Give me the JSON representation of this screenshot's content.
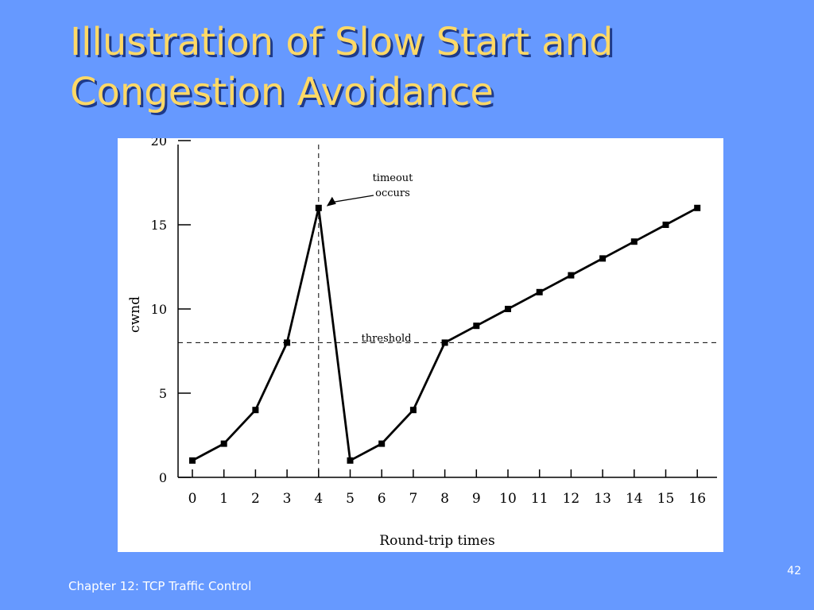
{
  "slide": {
    "title_line1": "Illustration of Slow Start and",
    "title_line2": "Congestion Avoidance",
    "footer": "Chapter 12:  TCP Traffic Control",
    "page_number": "42"
  },
  "colors": {
    "background": "#6699ff",
    "title": "#ffd966",
    "title_shadow": "#1e3a8a",
    "chart_panel": "#ffffff",
    "ink": "#000000"
  },
  "chart_data": {
    "type": "line",
    "title": "",
    "xlabel": "Round-trip times",
    "ylabel": "cwnd",
    "xlim": [
      0,
      16
    ],
    "ylim": [
      0,
      20
    ],
    "x_ticks": [
      0,
      1,
      2,
      3,
      4,
      5,
      6,
      7,
      8,
      9,
      10,
      11,
      12,
      13,
      14,
      15,
      16
    ],
    "y_ticks": [
      0,
      5,
      10,
      15,
      20
    ],
    "x": [
      0,
      1,
      2,
      3,
      4,
      5,
      6,
      7,
      8,
      9,
      10,
      11,
      12,
      13,
      14,
      15,
      16
    ],
    "series": [
      {
        "values": [
          1,
          2,
          4,
          8,
          16,
          1,
          2,
          4,
          8,
          9,
          10,
          11,
          12,
          13,
          14,
          15,
          16
        ]
      }
    ],
    "threshold": {
      "label": "threshold",
      "y": 8
    },
    "timeout": {
      "label_line1": "timeout",
      "label_line2": "occurs",
      "x": 4,
      "y": 16
    },
    "grid": false,
    "legend": "none"
  }
}
